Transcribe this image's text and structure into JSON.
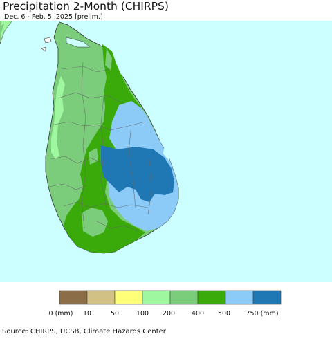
{
  "header": {
    "title": "Precipitation 2-Month (CHIRPS)",
    "subtitle": "Dec. 6 - Feb. 5, 2025 [prelim.]"
  },
  "legend": {
    "colors": [
      "#8b6d47",
      "#d2c185",
      "#ffff78",
      "#9ff79f",
      "#7bcd7b",
      "#3aa90a",
      "#8ccaf8",
      "#1f78b4"
    ],
    "labels": [
      "0 (mm)",
      "10",
      "50",
      "100",
      "200",
      "400",
      "500",
      "750 (mm)"
    ]
  },
  "footer": {
    "source": "Source: CHIRPS, UCSB, Climate Hazards Center"
  },
  "map_colors": {
    "ocean": "#ccffff",
    "land_base": "#7bcd7b",
    "wet_zone": "#3aa90a",
    "east_zone": "#8ccaf8",
    "core_zone": "#1f78b4",
    "dry_strip": "#9ff79f",
    "india": "#9ff79f"
  }
}
